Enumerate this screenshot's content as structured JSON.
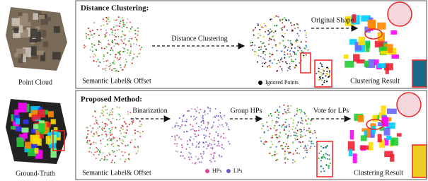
{
  "left": {
    "top_caption": "Point Cloud",
    "bottom_caption": "Ground-Truth"
  },
  "top_panel": {
    "title": "Distance Clustering:",
    "arrow_1": "Distance Clustering",
    "arrow_2": "Original Shape",
    "caption_1": "Semantic Label& Offset",
    "legend": "Ignored Points",
    "caption_3": "Clustering Result"
  },
  "bottom_panel": {
    "title": "Proposed Method:",
    "arrow_1": "Binarization",
    "arrow_2": "Group HPs",
    "arrow_3": "Vote for LPs",
    "caption_1": "Semantic Label& Offset",
    "legend_1": "HPs",
    "legend_2": "LPs",
    "caption_4": "Clustering Result"
  }
}
